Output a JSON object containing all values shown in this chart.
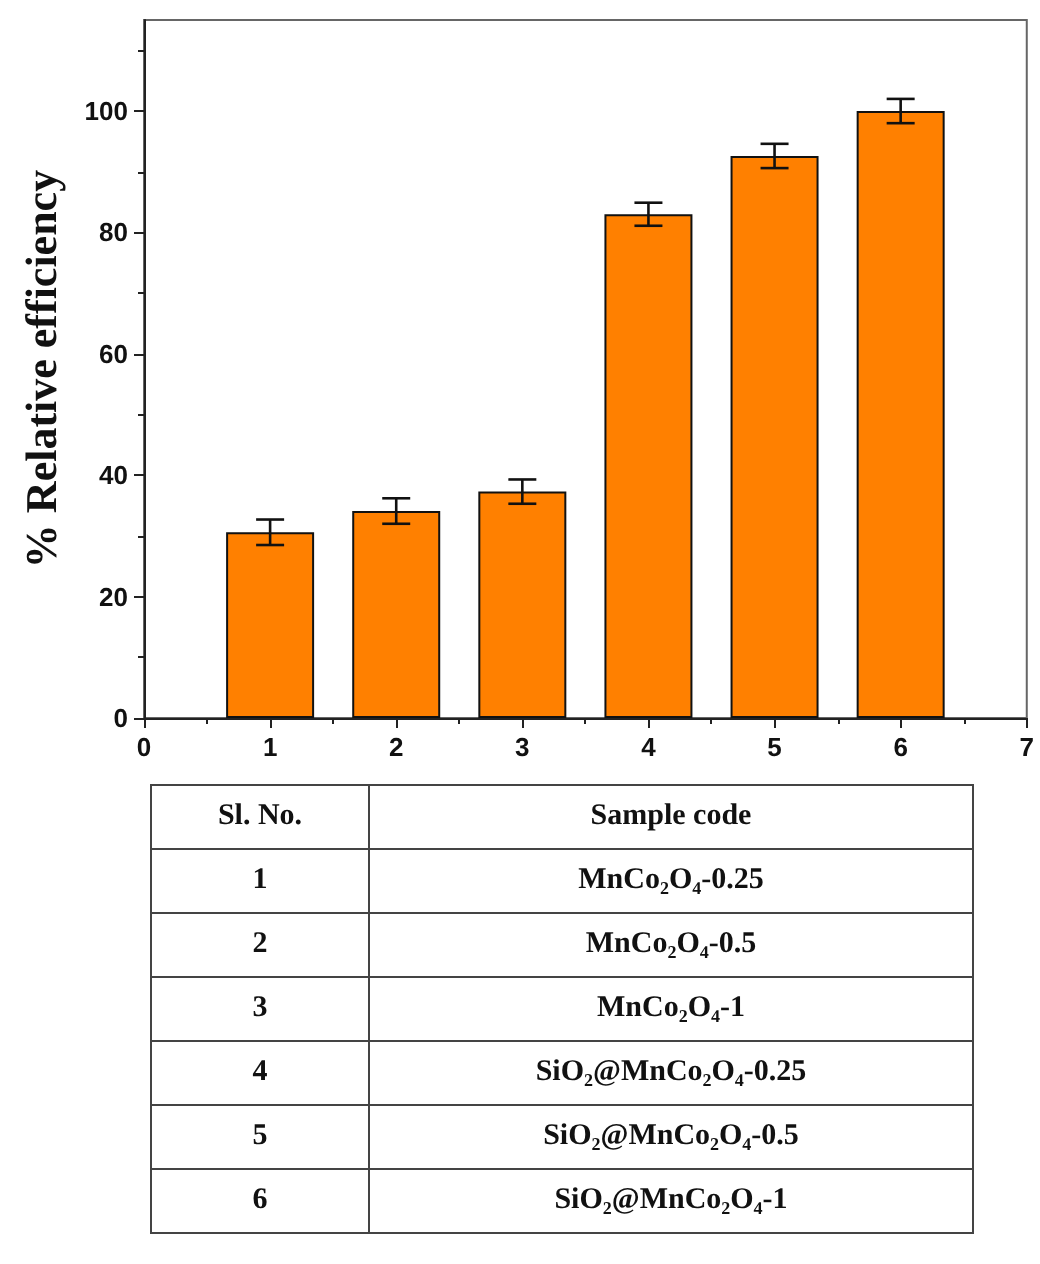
{
  "chart_data": {
    "type": "bar",
    "ylabel": "% Relative efficiency",
    "x": [
      1,
      2,
      3,
      4,
      5,
      6
    ],
    "values": [
      30.6,
      34.1,
      37.3,
      83.0,
      92.6,
      100
    ],
    "errors": [
      2.1,
      2.1,
      2,
      1.9,
      2,
      2
    ],
    "color": "#ff8000",
    "xlim": [
      0,
      7
    ],
    "xticks": [
      0,
      1,
      2,
      3,
      4,
      5,
      6,
      7
    ],
    "ylim": [
      0,
      115
    ],
    "yticks": [
      0,
      20,
      40,
      60,
      80,
      100
    ],
    "grid": false,
    "annotations": [
      "Sl. No.",
      "Sample code",
      "1",
      "MnCo₂O₄-0.25",
      "2",
      "MnCo₂O₄-0.5",
      "3",
      "MnCo₂O₄-1",
      "4",
      "SiO₂@MnCo₂O₄-0.25",
      "5",
      "SiO₂@MnCo₂O₄-0.5",
      "6",
      "SiO₂@MnCo₂O₄-1"
    ]
  }
}
